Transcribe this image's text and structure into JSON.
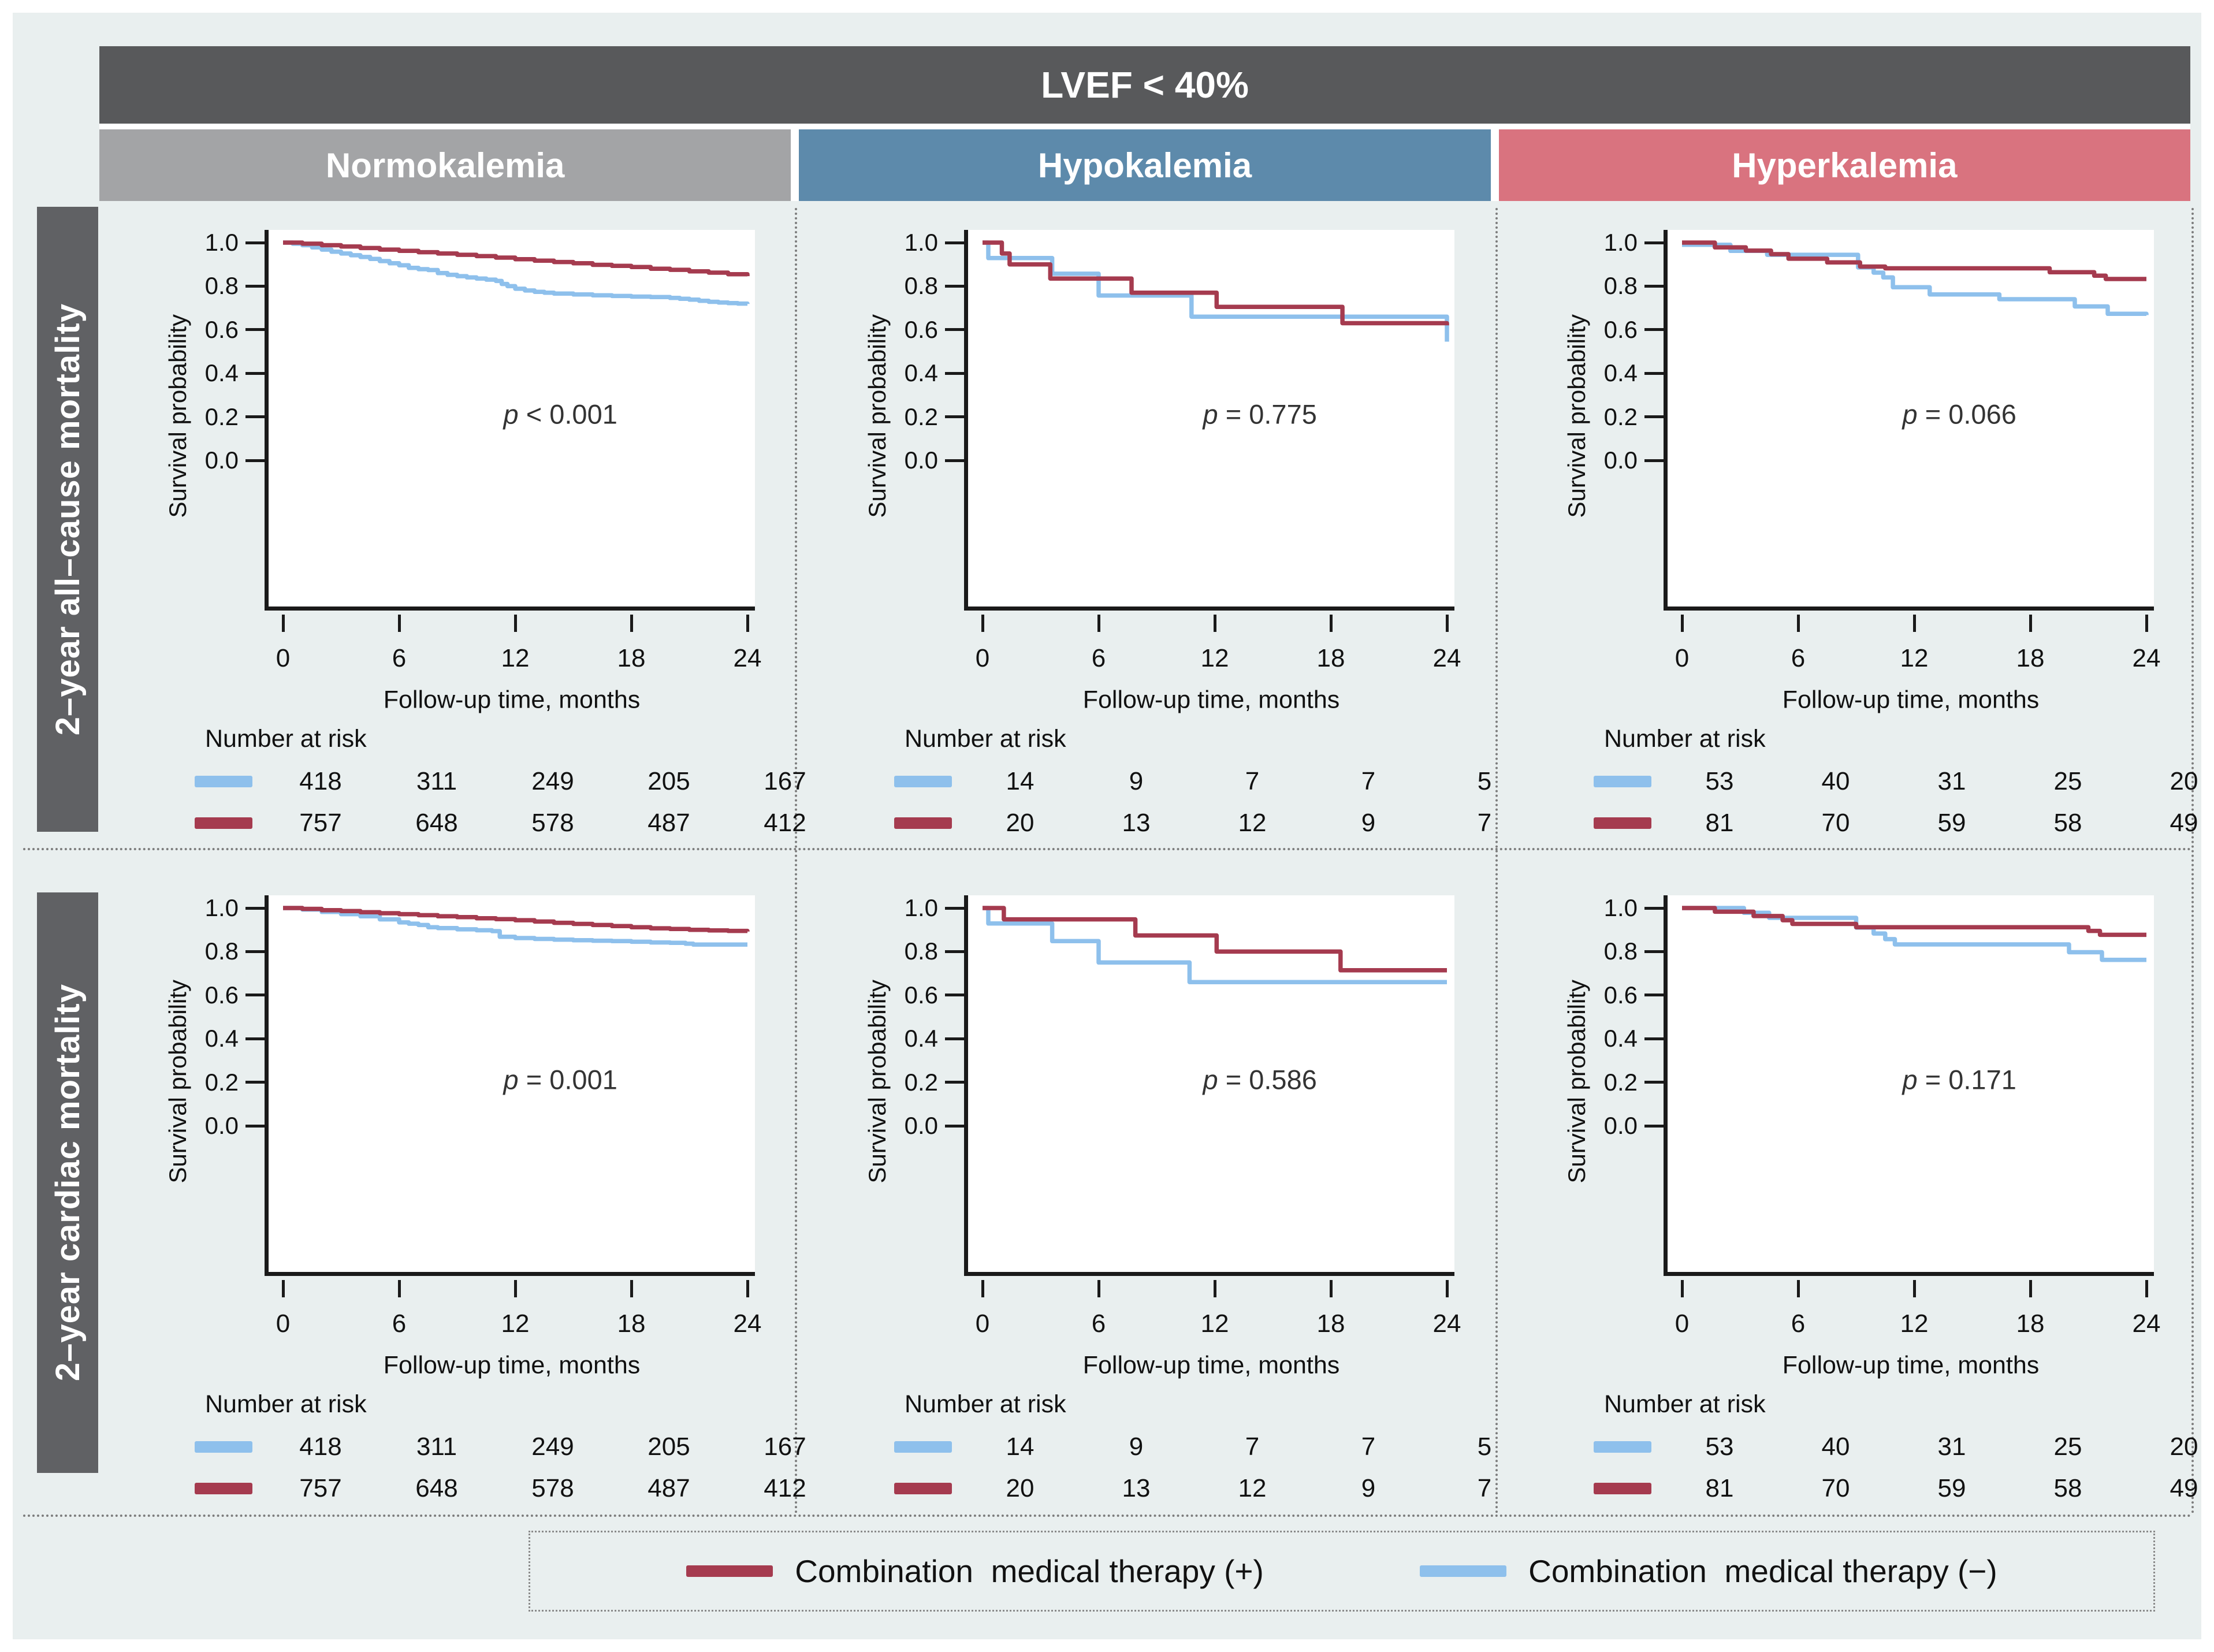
{
  "header": {
    "title": "LVEF < 40%"
  },
  "columns": [
    {
      "label": "Normokalemia",
      "color": "#a3a4a6"
    },
    {
      "label": "Hypokalemia",
      "color": "#5d8aab"
    },
    {
      "label": "Hyperkalemia",
      "color": "#d9737f"
    }
  ],
  "rows": [
    {
      "label": "2–year all–cause mortality"
    },
    {
      "label": "2–year cardiac mortality"
    }
  ],
  "colors": {
    "background": "#e9efef",
    "header_bar": "#58595b",
    "row_label_bar": "#606164",
    "axis": "#1a1a1a",
    "therapy_plus": "#a53b4f",
    "therapy_minus": "#8ec0ec"
  },
  "axis": {
    "x_title": "Follow-up time, months",
    "y_title": "Survival probability",
    "x_ticks": [
      0,
      6,
      12,
      18,
      24
    ],
    "y_ticks": [
      "1.0",
      "0.8",
      "0.6",
      "0.4",
      "0.2",
      "0.0"
    ],
    "x_max": 24,
    "y_range": [
      0.0,
      1.0
    ]
  },
  "risk_label": "Number at risk",
  "legend": [
    {
      "key": "therapy_plus",
      "label": "Combination  medical therapy (+)",
      "color": "#a53b4f"
    },
    {
      "key": "therapy_minus",
      "label": "Combination  medical therapy (−)",
      "color": "#8ec0ec"
    }
  ],
  "chart_data": [
    {
      "type": "line",
      "row": "2-year all-cause mortality",
      "column": "Normokalemia",
      "p_value": "p < 0.001",
      "series": [
        {
          "name": "Combination medical therapy (−)",
          "color_key": "therapy_minus",
          "number_at_risk": [
            418,
            311,
            249,
            205,
            167
          ],
          "points": [
            [
              0,
              1.0
            ],
            [
              0.5,
              0.995
            ],
            [
              1,
              0.988
            ],
            [
              1.5,
              0.978
            ],
            [
              2,
              0.968
            ],
            [
              2.5,
              0.958
            ],
            [
              3,
              0.95
            ],
            [
              3.5,
              0.942
            ],
            [
              4,
              0.934
            ],
            [
              4.5,
              0.925
            ],
            [
              5,
              0.915
            ],
            [
              5.5,
              0.905
            ],
            [
              6,
              0.896
            ],
            [
              6.5,
              0.884
            ],
            [
              7,
              0.878
            ],
            [
              7.5,
              0.874
            ],
            [
              8,
              0.86
            ],
            [
              8.5,
              0.852
            ],
            [
              9,
              0.846
            ],
            [
              9.5,
              0.84
            ],
            [
              10,
              0.835
            ],
            [
              10.5,
              0.83
            ],
            [
              11,
              0.824
            ],
            [
              11.3,
              0.81
            ],
            [
              11.6,
              0.8
            ],
            [
              12,
              0.788
            ],
            [
              12.5,
              0.78
            ],
            [
              13,
              0.774
            ],
            [
              13.5,
              0.77
            ],
            [
              14,
              0.766
            ],
            [
              15,
              0.762
            ],
            [
              16,
              0.758
            ],
            [
              17,
              0.755
            ],
            [
              18,
              0.752
            ],
            [
              19,
              0.75
            ],
            [
              20,
              0.746
            ],
            [
              20.5,
              0.742
            ],
            [
              21,
              0.738
            ],
            [
              21.5,
              0.733
            ],
            [
              22,
              0.728
            ],
            [
              22.5,
              0.725
            ],
            [
              23,
              0.722
            ],
            [
              23.5,
              0.72
            ],
            [
              24,
              0.718
            ]
          ]
        },
        {
          "name": "Combination medical therapy (+)",
          "color_key": "therapy_plus",
          "number_at_risk": [
            757,
            648,
            578,
            487,
            412
          ],
          "points": [
            [
              0,
              1.0
            ],
            [
              1,
              0.995
            ],
            [
              2,
              0.988
            ],
            [
              3,
              0.982
            ],
            [
              4,
              0.975
            ],
            [
              5,
              0.968
            ],
            [
              6,
              0.962
            ],
            [
              7,
              0.956
            ],
            [
              8,
              0.95
            ],
            [
              9,
              0.944
            ],
            [
              10,
              0.938
            ],
            [
              11,
              0.931
            ],
            [
              12,
              0.924
            ],
            [
              13,
              0.917
            ],
            [
              14,
              0.911
            ],
            [
              15,
              0.905
            ],
            [
              16,
              0.898
            ],
            [
              17,
              0.893
            ],
            [
              18,
              0.888
            ],
            [
              19,
              0.88
            ],
            [
              20,
              0.875
            ],
            [
              21,
              0.868
            ],
            [
              22,
              0.862
            ],
            [
              23,
              0.855
            ],
            [
              24,
              0.846
            ]
          ]
        }
      ]
    },
    {
      "type": "line",
      "row": "2-year all-cause mortality",
      "column": "Hypokalemia",
      "p_value": "p = 0.775",
      "series": [
        {
          "name": "Combination medical therapy (−)",
          "color_key": "therapy_minus",
          "number_at_risk": [
            14,
            9,
            7,
            7,
            5
          ],
          "points": [
            [
              0,
              1.0
            ],
            [
              0.3,
              0.929
            ],
            [
              3.6,
              0.857
            ],
            [
              6,
              0.757
            ],
            [
              10.8,
              0.66
            ],
            [
              24,
              0.66
            ],
            [
              24,
              0.545
            ]
          ]
        },
        {
          "name": "Combination medical therapy (+)",
          "color_key": "therapy_plus",
          "number_at_risk": [
            20,
            13,
            12,
            9,
            7
          ],
          "points": [
            [
              0,
              1.0
            ],
            [
              1.0,
              0.95
            ],
            [
              1.4,
              0.9
            ],
            [
              3.5,
              0.835
            ],
            [
              7.7,
              0.77
            ],
            [
              12.1,
              0.705
            ],
            [
              18.6,
              0.63
            ],
            [
              24,
              0.62
            ]
          ]
        }
      ]
    },
    {
      "type": "line",
      "row": "2-year all-cause mortality",
      "column": "Hyperkalemia",
      "p_value": "p = 0.066",
      "series": [
        {
          "name": "Combination medical therapy (−)",
          "color_key": "therapy_minus",
          "number_at_risk": [
            53,
            40,
            31,
            25,
            20
          ],
          "points": [
            [
              0,
              0.99
            ],
            [
              2.5,
              0.962
            ],
            [
              4.4,
              0.944
            ],
            [
              9.1,
              0.886
            ],
            [
              9.9,
              0.862
            ],
            [
              10.4,
              0.84
            ],
            [
              10.9,
              0.795
            ],
            [
              12.8,
              0.762
            ],
            [
              16.4,
              0.74
            ],
            [
              20.3,
              0.707
            ],
            [
              22,
              0.673
            ],
            [
              24,
              0.667
            ]
          ]
        },
        {
          "name": "Combination medical therapy (+)",
          "color_key": "therapy_plus",
          "number_at_risk": [
            81,
            70,
            59,
            58,
            49
          ],
          "points": [
            [
              0,
              1.0
            ],
            [
              1.7,
              0.978
            ],
            [
              3.3,
              0.963
            ],
            [
              4.6,
              0.947
            ],
            [
              5.5,
              0.926
            ],
            [
              7.5,
              0.909
            ],
            [
              9.2,
              0.89
            ],
            [
              10.5,
              0.882
            ],
            [
              19,
              0.864
            ],
            [
              21.3,
              0.848
            ],
            [
              21.9,
              0.833
            ],
            [
              24,
              0.833
            ]
          ]
        }
      ]
    },
    {
      "type": "line",
      "row": "2-year cardiac mortality",
      "column": "Normokalemia",
      "p_value": "p = 0.001",
      "series": [
        {
          "name": "Combination medical therapy (−)",
          "color_key": "therapy_minus",
          "number_at_risk": [
            418,
            311,
            249,
            205,
            167
          ],
          "points": [
            [
              0,
              1.0
            ],
            [
              1,
              0.993
            ],
            [
              2,
              0.982
            ],
            [
              3,
              0.972
            ],
            [
              4,
              0.962
            ],
            [
              5,
              0.948
            ],
            [
              6,
              0.934
            ],
            [
              6.5,
              0.928
            ],
            [
              7,
              0.922
            ],
            [
              7.5,
              0.912
            ],
            [
              8,
              0.908
            ],
            [
              9,
              0.902
            ],
            [
              10,
              0.898
            ],
            [
              10.8,
              0.894
            ],
            [
              11.2,
              0.868
            ],
            [
              12,
              0.862
            ],
            [
              13,
              0.858
            ],
            [
              14,
              0.855
            ],
            [
              15,
              0.852
            ],
            [
              16,
              0.85
            ],
            [
              17,
              0.848
            ],
            [
              18,
              0.845
            ],
            [
              19,
              0.842
            ],
            [
              20,
              0.84
            ],
            [
              20.8,
              0.836
            ],
            [
              21.2,
              0.832
            ],
            [
              24,
              0.832
            ]
          ]
        },
        {
          "name": "Combination medical therapy (+)",
          "color_key": "therapy_plus",
          "number_at_risk": [
            757,
            648,
            578,
            487,
            412
          ],
          "points": [
            [
              0,
              1.0
            ],
            [
              1,
              0.996
            ],
            [
              2,
              0.99
            ],
            [
              3,
              0.986
            ],
            [
              4,
              0.981
            ],
            [
              5,
              0.976
            ],
            [
              6,
              0.972
            ],
            [
              7,
              0.967
            ],
            [
              8,
              0.962
            ],
            [
              9,
              0.958
            ],
            [
              10,
              0.953
            ],
            [
              11,
              0.949
            ],
            [
              12,
              0.944
            ],
            [
              13,
              0.938
            ],
            [
              14,
              0.932
            ],
            [
              15,
              0.927
            ],
            [
              16,
              0.922
            ],
            [
              17,
              0.917
            ],
            [
              18,
              0.912
            ],
            [
              19,
              0.907
            ],
            [
              20,
              0.904
            ],
            [
              21,
              0.9
            ],
            [
              22,
              0.897
            ],
            [
              23,
              0.895
            ],
            [
              24,
              0.892
            ]
          ]
        }
      ]
    },
    {
      "type": "line",
      "row": "2-year cardiac mortality",
      "column": "Hypokalemia",
      "p_value": "p = 0.586",
      "series": [
        {
          "name": "Combination medical therapy (−)",
          "color_key": "therapy_minus",
          "number_at_risk": [
            14,
            9,
            7,
            7,
            5
          ],
          "points": [
            [
              0,
              1.0
            ],
            [
              0.3,
              0.929
            ],
            [
              3.6,
              0.848
            ],
            [
              6,
              0.75
            ],
            [
              10.7,
              0.66
            ],
            [
              24,
              0.66
            ]
          ]
        },
        {
          "name": "Combination medical therapy (+)",
          "color_key": "therapy_plus",
          "number_at_risk": [
            20,
            13,
            12,
            9,
            7
          ],
          "points": [
            [
              0,
              1.0
            ],
            [
              1.1,
              0.948
            ],
            [
              7.9,
              0.874
            ],
            [
              12.1,
              0.8
            ],
            [
              18.5,
              0.714
            ],
            [
              24,
              0.714
            ]
          ]
        }
      ]
    },
    {
      "type": "line",
      "row": "2-year cardiac mortality",
      "column": "Hyperkalemia",
      "p_value": "p = 0.171",
      "series": [
        {
          "name": "Combination medical therapy (−)",
          "color_key": "therapy_minus",
          "number_at_risk": [
            53,
            40,
            31,
            25,
            20
          ],
          "points": [
            [
              0,
              1.0
            ],
            [
              3.2,
              0.978
            ],
            [
              4.5,
              0.955
            ],
            [
              9,
              0.91
            ],
            [
              9.9,
              0.883
            ],
            [
              10.5,
              0.857
            ],
            [
              11,
              0.833
            ],
            [
              20,
              0.797
            ],
            [
              21.7,
              0.762
            ],
            [
              24,
              0.762
            ]
          ]
        },
        {
          "name": "Combination medical therapy (+)",
          "color_key": "therapy_plus",
          "number_at_risk": [
            81,
            70,
            59,
            58,
            49
          ],
          "points": [
            [
              0,
              1.0
            ],
            [
              1.7,
              0.983
            ],
            [
              3.7,
              0.963
            ],
            [
              5.2,
              0.944
            ],
            [
              5.7,
              0.927
            ],
            [
              9,
              0.912
            ],
            [
              21,
              0.895
            ],
            [
              21.6,
              0.877
            ],
            [
              24,
              0.877
            ]
          ]
        }
      ]
    }
  ]
}
